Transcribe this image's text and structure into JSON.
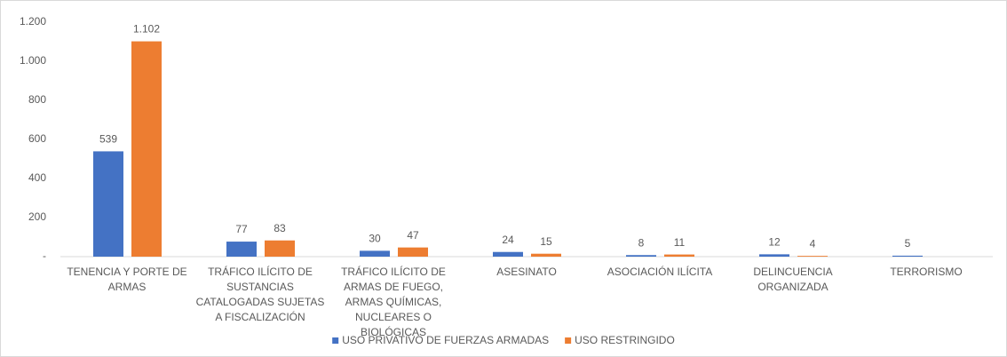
{
  "chart_data": {
    "type": "bar",
    "categories": [
      "TENENCIA Y PORTE DE ARMAS",
      "TRÁFICO ILÍCITO DE SUSTANCIAS CATALOGADAS SUJETAS A FISCALIZACIÓN",
      "TRÁFICO ILÍCITO DE ARMAS DE FUEGO, ARMAS QUÍMICAS, NUCLEARES O BIOLÓGICAS",
      "ASESINATO",
      "ASOCIACIÓN ILÍCITA",
      "DELINCUENCIA ORGANIZADA",
      "TERRORISMO"
    ],
    "series": [
      {
        "name": "USO PRIVATIVO DE FUERZAS ARMADAS",
        "color": "#4472c4",
        "values": [
          539,
          77,
          30,
          24,
          8,
          12,
          5
        ]
      },
      {
        "name": "USO RESTRINGIDO",
        "color": "#ed7d31",
        "values": [
          1102,
          83,
          47,
          15,
          11,
          4,
          null
        ],
        "value_labels": [
          "1.102",
          "83",
          "47",
          "15",
          "11",
          "4",
          null
        ]
      }
    ],
    "ylim": [
      0,
      1200
    ],
    "yticks": [
      {
        "value": 0,
        "label": "-"
      },
      200,
      400,
      600,
      800,
      {
        "value": 1000,
        "label": "1.000"
      },
      {
        "value": 1200,
        "label": "1.200"
      }
    ],
    "grid": false,
    "legend": "bottom"
  }
}
